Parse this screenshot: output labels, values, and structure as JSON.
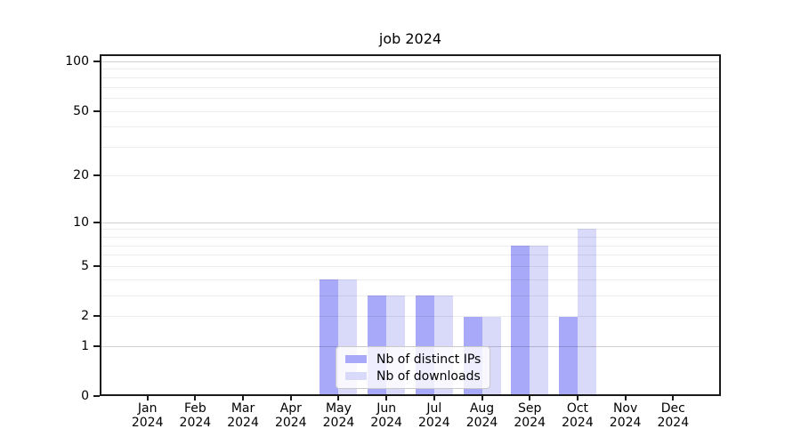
{
  "title": "job 2024",
  "colors": {
    "distinct_ips": "#a9a9f9",
    "downloads": "#d9d9fa",
    "spine": "#1a1a1a",
    "background": "#ffffff",
    "legend_border": "#c9c9c9"
  },
  "chart_data": {
    "type": "bar",
    "title": "job 2024",
    "year": "2024",
    "months": [
      "Jan",
      "Feb",
      "Mar",
      "Apr",
      "May",
      "Jun",
      "Jul",
      "Aug",
      "Sep",
      "Oct",
      "Nov",
      "Dec"
    ],
    "categories": [
      "Jan 2024",
      "Feb 2024",
      "Mar 2024",
      "Apr 2024",
      "May 2024",
      "Jun 2024",
      "Jul 2024",
      "Aug 2024",
      "Sep 2024",
      "Oct 2024",
      "Nov 2024",
      "Dec 2024"
    ],
    "series": [
      {
        "name": "Nb of distinct IPs",
        "color": "#a9a9f9",
        "values": [
          0,
          0,
          0,
          0,
          4,
          3,
          3,
          2,
          7,
          2,
          0,
          0
        ]
      },
      {
        "name": "Nb of downloads",
        "color": "#d9d9fa",
        "values": [
          0,
          0,
          0,
          0,
          4,
          3,
          3,
          2,
          7,
          9,
          0,
          0
        ]
      }
    ],
    "xlabel": "",
    "ylabel": "",
    "yscale": "log1p",
    "ylim": [
      0,
      110
    ],
    "yticks": [
      0,
      1,
      2,
      5,
      10,
      20,
      50,
      100
    ],
    "ytick_labels": [
      "0",
      "1",
      "2",
      "5",
      "10",
      "20",
      "50",
      "100"
    ],
    "minor_gridlines": [
      2,
      3,
      4,
      5,
      6,
      7,
      8,
      9,
      20,
      30,
      40,
      50,
      60,
      70,
      80,
      90
    ],
    "major_gridlines": [
      1,
      10,
      100
    ],
    "grid": true,
    "legend_position": "lower center"
  }
}
